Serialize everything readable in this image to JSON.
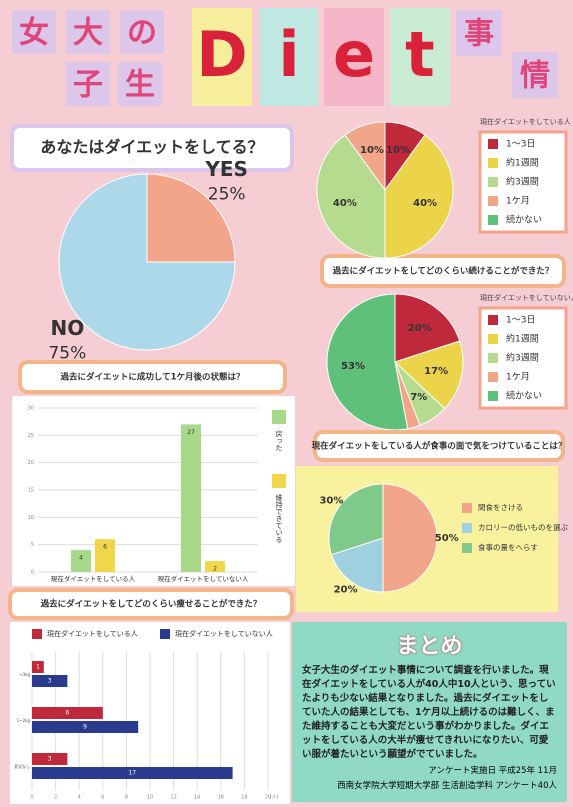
{
  "header": {
    "title_parts": [
      "女",
      "大",
      "の",
      "子",
      "生",
      "D",
      "i",
      "e",
      "t",
      "事",
      "情"
    ]
  },
  "chart_data": [
    {
      "type": "pie",
      "title": "あなたはダイエットをしてる？",
      "categories": [
        "YES",
        "NO"
      ],
      "values": [
        25,
        75
      ],
      "value_labels": [
        "25%",
        "75%"
      ],
      "colors": [
        "#f2a588",
        "#acd8ea"
      ]
    },
    {
      "type": "pie",
      "title": "過去にダイエットをしてどのくらい続けることができた？",
      "legend_title": "現在ダイエットをしている人",
      "legend": "right",
      "categories": [
        "1〜3日",
        "約1週間",
        "約3週間",
        "1ケ月",
        "続かない"
      ],
      "values": [
        10,
        40,
        40,
        10,
        0
      ],
      "value_labels": [
        "10%",
        "40%",
        "40%",
        "10%",
        null
      ],
      "colors": [
        "#c0283c",
        "#ecd44a",
        "#b5dc8e",
        "#f2a588",
        "#5fc07a"
      ]
    },
    {
      "type": "pie",
      "legend_title": "現在ダイエットをしていない人",
      "legend": "right",
      "categories": [
        "1〜3日",
        "約1週間",
        "約3週間",
        "1ケ月",
        "続かない"
      ],
      "values": [
        20,
        17,
        7,
        3,
        53
      ],
      "value_labels": [
        "20%",
        "17%",
        "7%",
        "3%",
        "53%"
      ],
      "colors": [
        "#c0283c",
        "#ecd44a",
        "#b5dc8e",
        "#f2a588",
        "#5fc07a"
      ]
    },
    {
      "type": "bar",
      "title": "過去にダイエットに成功して1ケ月後の状態は？",
      "categories": [
        "現在ダイエットをしている人",
        "現在ダイエットをしていない人"
      ],
      "series": [
        {
          "name": "戻った",
          "color": "#a8d88a",
          "values": [
            4,
            27
          ]
        },
        {
          "name": "維持できている",
          "color": "#f0d64a",
          "values": [
            6,
            2
          ]
        }
      ],
      "ylim": [
        0,
        30
      ],
      "yticks": [
        0,
        5,
        10,
        15,
        20,
        25,
        30
      ],
      "grid": true,
      "legend": "right"
    },
    {
      "type": "pie",
      "title": "現在ダイエットをしている人が食事の面で気をつけていることは？",
      "legend": "right",
      "categories": [
        "間食をさける",
        "カロリーの低いものを選ぶ",
        "食事の量をへらす"
      ],
      "values": [
        50,
        20,
        30
      ],
      "value_labels": [
        "50%",
        "20%",
        "30%"
      ],
      "colors": [
        "#f2a588",
        "#9fd0e0",
        "#7fc98a"
      ]
    },
    {
      "type": "hbar",
      "title": "過去にダイエットをしてどのくらい痩せることができた？",
      "categories": [
        "~3kg",
        "1~2kg",
        "変化なし"
      ],
      "series": [
        {
          "name": "現在ダイエットをしている人",
          "color": "#c0283c",
          "values": [
            1,
            6,
            3
          ]
        },
        {
          "name": "現在ダイエットをしていない人",
          "color": "#2a3a8c",
          "values": [
            3,
            9,
            17
          ]
        }
      ],
      "xlim": [
        0,
        20
      ],
      "xticks": [
        0,
        2,
        4,
        6,
        8,
        10,
        12,
        14,
        16,
        18,
        20
      ],
      "xlabel": "(人)",
      "grid": true,
      "legend": "top"
    }
  ],
  "summary": {
    "title": "まとめ",
    "text": "女子大生のダイエット事情について調査を行いました。現在ダイエットをしている人が40人中10人という、思っていたよりも少ない結果となりました。過去にダイエットをしていた人の結果としても、1ケ月以上続けるのは難しく、また維持することも大変だという事がわかりました。ダイエットをしている人の大半が痩せてきれいになりたい、可愛い服が着たいという願望がでていました。",
    "footer": [
      "アンケート実施日 平成25年 11月",
      "西南女学院大学短期大学部 生活創造学科 アンケート40人"
    ]
  }
}
